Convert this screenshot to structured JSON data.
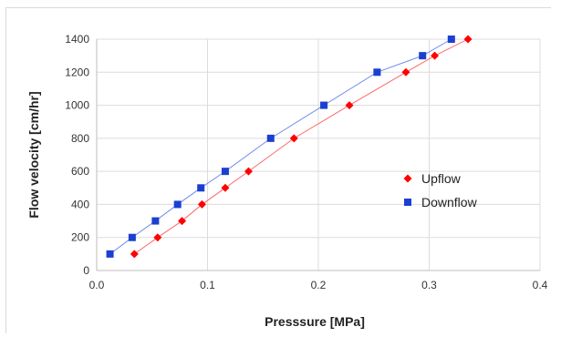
{
  "chart_data": {
    "type": "scatter",
    "title": "",
    "xlabel": "Presssure [MPa]",
    "ylabel": "Flow velocity [cm/hr]",
    "xlim": [
      0,
      0.4
    ],
    "ylim": [
      0,
      1400
    ],
    "xticks": [
      0,
      0.1,
      0.2,
      0.3,
      0.4
    ],
    "xtick_labels": [
      "0.0",
      "0.1",
      "0.2",
      "0.3",
      "0.4"
    ],
    "yticks": [
      0,
      200,
      400,
      600,
      800,
      1000,
      1200,
      1400
    ],
    "ytick_labels": [
      "0",
      "200",
      "400",
      "600",
      "800",
      "1000",
      "1200",
      "1400"
    ],
    "grid": true,
    "legend_position": "center-right",
    "series": [
      {
        "name": "Upflow",
        "marker": "diamond",
        "color": "#ff0000",
        "line_color": "#ff6666",
        "x": [
          0.034,
          0.055,
          0.077,
          0.095,
          0.116,
          0.137,
          0.178,
          0.228,
          0.279,
          0.305,
          0.335
        ],
        "y": [
          100,
          200,
          300,
          400,
          500,
          600,
          800,
          1000,
          1200,
          1300,
          1400
        ]
      },
      {
        "name": "Downflow",
        "marker": "square",
        "color": "#1c3fd1",
        "line_color": "#6f8cf0",
        "x": [
          0.012,
          0.032,
          0.053,
          0.073,
          0.094,
          0.116,
          0.157,
          0.205,
          0.253,
          0.294,
          0.32
        ],
        "y": [
          100,
          200,
          300,
          400,
          500,
          600,
          800,
          1000,
          1200,
          1300,
          1400
        ]
      }
    ]
  }
}
